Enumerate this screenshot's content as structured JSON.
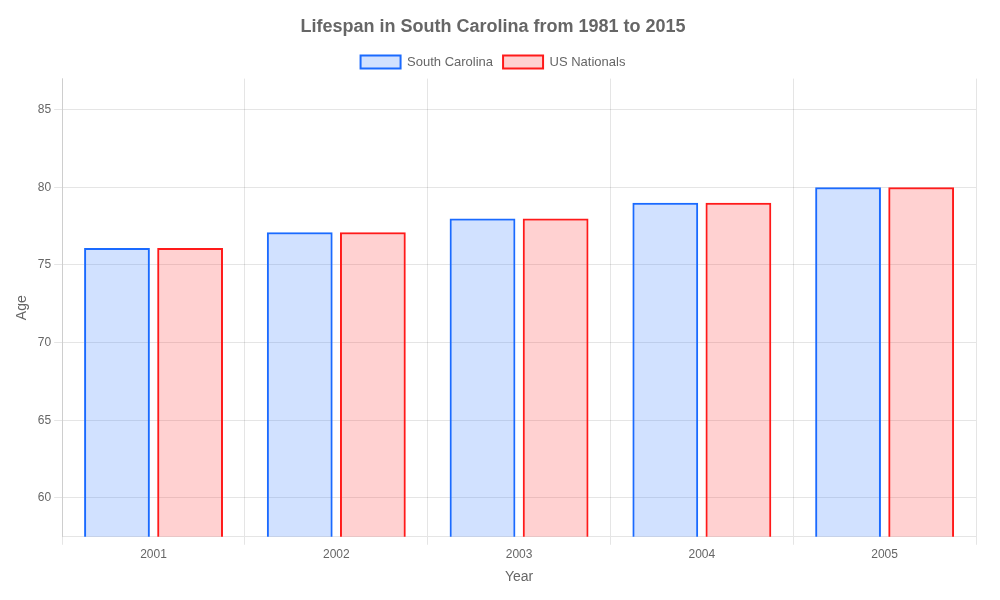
{
  "chart_data": {
    "type": "bar",
    "title": "Lifespan in South Carolina from 1981 to 2015",
    "x_label": "Year",
    "y_label": "Age",
    "categories": [
      "2001",
      "2002",
      "2003",
      "2004",
      "2005"
    ],
    "series": [
      {
        "name": "South Carolina",
        "color": "#1a6aff",
        "values": [
          76.1,
          77.1,
          78.0,
          79.0,
          80.0
        ]
      },
      {
        "name": "US Nationals",
        "color": "#ff1a1a",
        "values": [
          76.1,
          77.1,
          78.0,
          79.0,
          80.0
        ]
      }
    ],
    "ylim": [
      57.5,
      87
    ],
    "yticks": [
      60,
      65,
      70,
      75,
      80,
      85
    ],
    "grid": true,
    "legend": "top"
  }
}
